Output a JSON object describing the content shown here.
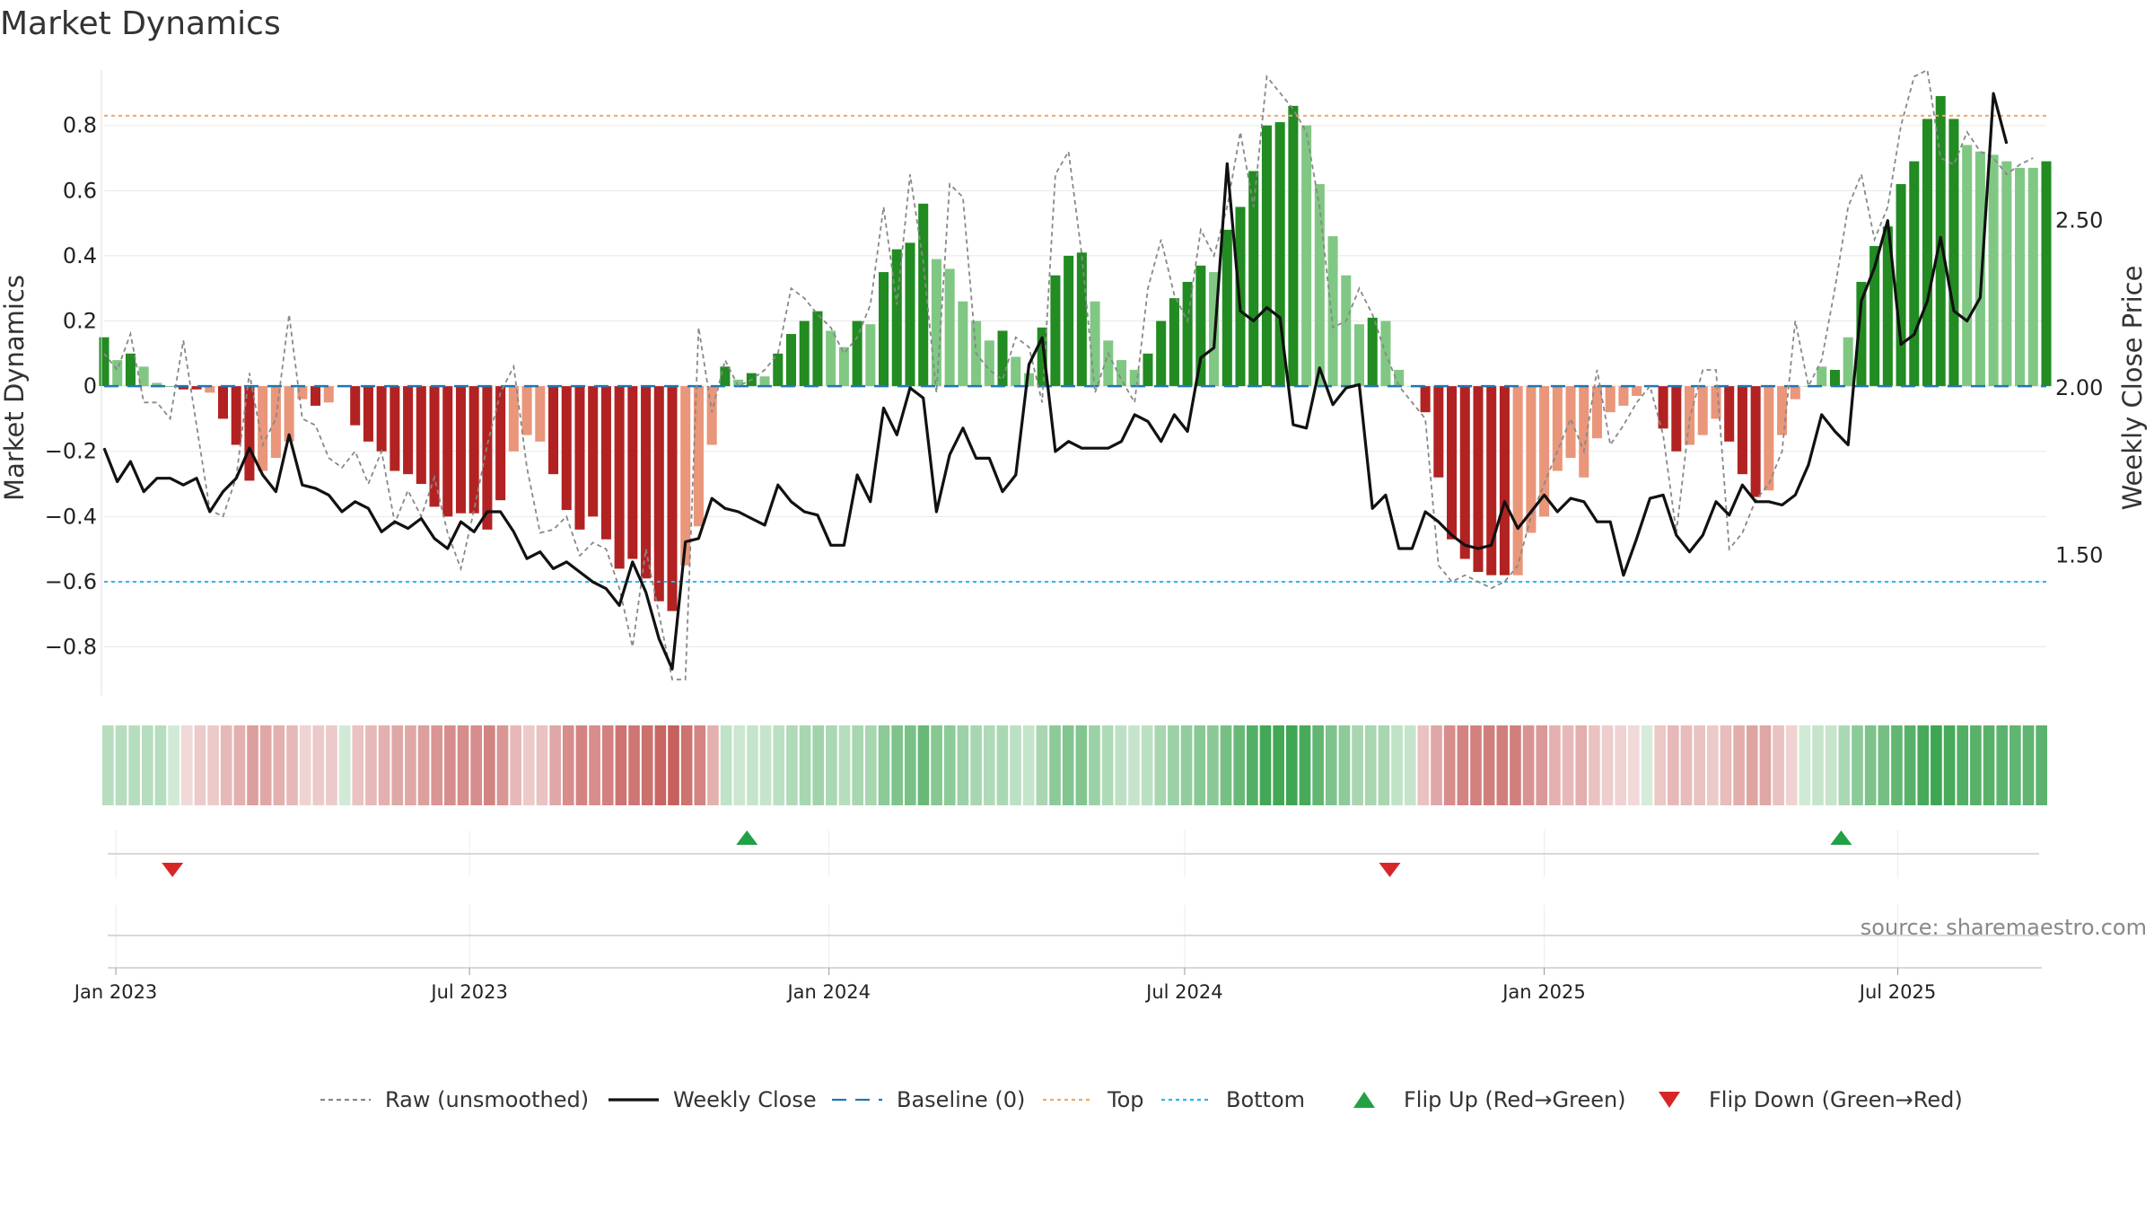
{
  "chart_data": {
    "type": "bar",
    "title": "Market Dynamics",
    "ylabel": "Market Dynamics",
    "y2label": "Weekly Close Price",
    "source": "source: sharemaestro.com",
    "ylim": [
      -0.95,
      0.97
    ],
    "y2lim": [
      1.08,
      2.95
    ],
    "yticks": [
      -0.8,
      -0.6,
      -0.4,
      -0.2,
      0,
      0.2,
      0.4,
      0.6,
      0.8
    ],
    "ytick_labels": [
      "−0.8",
      "−0.6",
      "−0.4",
      "−0.2",
      "0",
      "0.2",
      "0.4",
      "0.6",
      "0.8"
    ],
    "y2ticks": [
      1.5,
      2.0,
      2.5
    ],
    "y2tick_labels": [
      "1.50",
      "2.00",
      "2.50"
    ],
    "x_start": "2022-12-26",
    "x_end": "2025-09-15",
    "xticks": [
      "2023-01-01",
      "2023-07-01",
      "2024-01-01",
      "2024-07-01",
      "2025-01-01",
      "2025-07-01"
    ],
    "xtick_labels": [
      "Jan 2023",
      "Jul 2023",
      "Jan 2024",
      "Jul 2024",
      "Jan 2025",
      "Jul 2025"
    ],
    "grid": true,
    "top_threshold": 0.83,
    "bottom_threshold": -0.6,
    "baseline": 0,
    "smoothed": [
      0.15,
      0.08,
      0.1,
      0.06,
      0.01,
      0.0,
      -0.01,
      -0.01,
      -0.02,
      -0.1,
      -0.18,
      -0.29,
      -0.26,
      -0.22,
      -0.17,
      -0.04,
      -0.06,
      -0.05,
      0.0,
      -0.12,
      -0.17,
      -0.2,
      -0.26,
      -0.27,
      -0.3,
      -0.37,
      -0.4,
      -0.39,
      -0.39,
      -0.44,
      -0.35,
      -0.2,
      -0.15,
      -0.17,
      -0.27,
      -0.38,
      -0.44,
      -0.4,
      -0.47,
      -0.56,
      -0.53,
      -0.59,
      -0.66,
      -0.69,
      -0.55,
      -0.43,
      -0.18,
      0.06,
      0.02,
      0.04,
      0.03,
      0.1,
      0.16,
      0.2,
      0.23,
      0.17,
      0.12,
      0.2,
      0.19,
      0.35,
      0.42,
      0.44,
      0.56,
      0.39,
      0.36,
      0.26,
      0.2,
      0.14,
      0.17,
      0.09,
      0.04,
      0.18,
      0.34,
      0.4,
      0.41,
      0.26,
      0.14,
      0.08,
      0.05,
      0.1,
      0.2,
      0.27,
      0.32,
      0.37,
      0.35,
      0.48,
      0.55,
      0.66,
      0.8,
      0.81,
      0.86,
      0.8,
      0.62,
      0.46,
      0.34,
      0.19,
      0.21,
      0.2,
      0.05,
      0.0,
      -0.08,
      -0.28,
      -0.47,
      -0.53,
      -0.57,
      -0.58,
      -0.58,
      -0.58,
      -0.45,
      -0.4,
      -0.26,
      -0.22,
      -0.28,
      -0.16,
      -0.08,
      -0.06,
      -0.03,
      0.0,
      -0.13,
      -0.2,
      -0.18,
      -0.15,
      -0.1,
      -0.17,
      -0.27,
      -0.34,
      -0.32,
      -0.15,
      -0.04,
      0.0,
      0.06,
      0.05,
      0.15,
      0.32,
      0.43,
      0.49,
      0.62,
      0.69,
      0.82,
      0.89,
      0.82,
      0.74,
      0.72,
      0.71,
      0.69,
      0.67,
      0.67,
      0.69
    ],
    "color_flags": [
      1,
      0,
      1,
      0,
      0,
      1,
      1,
      1,
      0,
      1,
      1,
      1,
      0,
      0,
      0,
      0,
      1,
      0,
      1,
      1,
      1,
      1,
      1,
      1,
      1,
      1,
      1,
      1,
      1,
      1,
      1,
      0,
      0,
      0,
      1,
      1,
      1,
      1,
      1,
      1,
      1,
      1,
      1,
      1,
      0,
      0,
      0,
      1,
      0,
      1,
      0,
      1,
      1,
      1,
      1,
      0,
      0,
      1,
      0,
      1,
      1,
      1,
      1,
      0,
      0,
      0,
      0,
      0,
      1,
      0,
      0,
      1,
      1,
      1,
      1,
      0,
      0,
      0,
      0,
      1,
      1,
      1,
      1,
      1,
      0,
      1,
      1,
      1,
      1,
      1,
      1,
      0,
      0,
      0,
      0,
      0,
      1,
      0,
      0,
      0,
      1,
      1,
      1,
      1,
      1,
      1,
      1,
      0,
      0,
      0,
      0,
      0,
      0,
      0,
      0,
      0,
      0,
      0,
      1,
      1,
      0,
      0,
      0,
      1,
      1,
      1,
      0,
      0,
      0,
      0,
      0,
      1,
      0,
      1,
      1,
      1,
      1,
      1,
      1,
      1,
      1,
      0,
      0,
      0,
      0,
      0,
      0,
      1,
      1
    ],
    "raw_visible": [
      0.1,
      0.05,
      0.16,
      -0.05,
      -0.05,
      -0.1,
      0.14,
      -0.12,
      -0.38,
      -0.4,
      -0.28,
      0.04,
      -0.18,
      -0.1,
      0.22,
      -0.1,
      -0.12,
      -0.22,
      -0.25,
      -0.2,
      -0.3,
      -0.2,
      -0.42,
      -0.32,
      -0.4,
      -0.28,
      -0.45,
      -0.56,
      -0.38,
      -0.18,
      -0.02,
      0.06,
      -0.25,
      -0.45,
      -0.44,
      -0.4,
      -0.52,
      -0.48,
      -0.5,
      -0.62,
      -0.8,
      -0.5,
      -0.7,
      -0.9,
      -0.9,
      0.18,
      -0.08,
      0.08,
      0.0,
      0.02,
      0.05,
      0.1,
      0.3,
      0.27,
      0.22,
      0.18,
      0.1,
      0.15,
      0.25,
      0.55,
      0.25,
      0.65,
      0.38,
      -0.02,
      0.62,
      0.58,
      0.1,
      0.05,
      0.02,
      0.15,
      0.12,
      -0.05,
      0.65,
      0.72,
      0.4,
      -0.02,
      0.1,
      0.02,
      -0.05,
      0.3,
      0.45,
      0.28,
      0.2,
      0.48,
      0.4,
      0.55,
      0.78,
      0.55,
      0.95,
      0.9,
      0.85,
      0.78,
      0.55,
      0.18,
      0.2,
      0.3,
      0.22,
      0.1,
      0.0,
      -0.05,
      -0.1,
      -0.55,
      -0.6,
      -0.58,
      -0.6,
      -0.62,
      -0.6,
      -0.55,
      -0.4,
      -0.3,
      -0.2,
      -0.1,
      -0.2,
      0.05,
      -0.18,
      -0.12,
      -0.05,
      0.0,
      -0.15,
      -0.45,
      -0.1,
      0.05,
      0.05,
      -0.5,
      -0.45,
      -0.35,
      -0.3,
      -0.2,
      0.2,
      0.0,
      0.08,
      0.3,
      0.55,
      0.65,
      0.45,
      0.55,
      0.8,
      0.95,
      0.97,
      0.7,
      0.68,
      0.78,
      0.72,
      0.7,
      0.65,
      0.68,
      0.7
    ],
    "close": [
      1.82,
      1.72,
      1.78,
      1.69,
      1.73,
      1.73,
      1.71,
      1.73,
      1.63,
      1.69,
      1.73,
      1.82,
      1.74,
      1.69,
      1.86,
      1.71,
      1.7,
      1.68,
      1.63,
      1.66,
      1.64,
      1.57,
      1.6,
      1.58,
      1.61,
      1.55,
      1.52,
      1.6,
      1.57,
      1.63,
      1.63,
      1.57,
      1.49,
      1.51,
      1.46,
      1.48,
      1.45,
      1.42,
      1.4,
      1.35,
      1.48,
      1.39,
      1.25,
      1.16,
      1.54,
      1.55,
      1.67,
      1.64,
      1.63,
      1.61,
      1.59,
      1.71,
      1.66,
      1.63,
      1.62,
      1.53,
      1.53,
      1.74,
      1.66,
      1.94,
      1.86,
      2.0,
      1.97,
      1.63,
      1.8,
      1.88,
      1.79,
      1.79,
      1.69,
      1.74,
      2.07,
      2.15,
      1.81,
      1.84,
      1.82,
      1.82,
      1.82,
      1.84,
      1.92,
      1.9,
      1.84,
      1.92,
      1.87,
      2.09,
      2.12,
      2.67,
      2.23,
      2.2,
      2.24,
      2.21,
      1.89,
      1.88,
      2.06,
      1.95,
      2.0,
      2.01,
      1.64,
      1.68,
      1.52,
      1.52,
      1.63,
      1.6,
      1.56,
      1.53,
      1.52,
      1.53,
      1.66,
      1.58,
      1.63,
      1.68,
      1.63,
      1.67,
      1.66,
      1.6,
      1.6,
      1.44,
      1.55,
      1.67,
      1.68,
      1.56,
      1.51,
      1.56,
      1.66,
      1.62,
      1.71,
      1.66,
      1.66,
      1.65,
      1.68,
      1.77,
      1.92,
      1.87,
      1.83,
      2.26,
      2.36,
      2.5,
      2.13,
      2.16,
      2.26,
      2.45,
      2.23,
      2.2,
      2.27,
      2.88,
      2.73
    ],
    "strip_alpha": [
      0.35,
      0.35,
      0.35,
      0.35,
      0.35,
      0.22,
      0.22,
      0.3,
      0.3,
      0.4,
      0.45,
      0.55,
      0.5,
      0.45,
      0.4,
      0.25,
      0.3,
      0.3,
      0.22,
      0.35,
      0.4,
      0.45,
      0.5,
      0.5,
      0.55,
      0.6,
      0.65,
      0.65,
      0.65,
      0.7,
      0.6,
      0.4,
      0.3,
      0.35,
      0.5,
      0.65,
      0.7,
      0.65,
      0.72,
      0.8,
      0.78,
      0.82,
      0.88,
      0.9,
      0.8,
      0.7,
      0.45,
      0.3,
      0.25,
      0.28,
      0.28,
      0.32,
      0.38,
      0.42,
      0.45,
      0.4,
      0.35,
      0.42,
      0.42,
      0.55,
      0.62,
      0.64,
      0.72,
      0.58,
      0.55,
      0.48,
      0.42,
      0.38,
      0.4,
      0.32,
      0.28,
      0.42,
      0.55,
      0.6,
      0.6,
      0.48,
      0.38,
      0.32,
      0.28,
      0.32,
      0.42,
      0.48,
      0.52,
      0.57,
      0.56,
      0.65,
      0.72,
      0.82,
      0.9,
      0.9,
      0.92,
      0.88,
      0.75,
      0.62,
      0.55,
      0.42,
      0.42,
      0.42,
      0.3,
      0.28,
      0.35,
      0.5,
      0.65,
      0.7,
      0.72,
      0.73,
      0.73,
      0.73,
      0.62,
      0.58,
      0.45,
      0.4,
      0.46,
      0.35,
      0.28,
      0.25,
      0.22,
      0.2,
      0.32,
      0.4,
      0.38,
      0.35,
      0.3,
      0.38,
      0.46,
      0.52,
      0.5,
      0.35,
      0.25,
      0.22,
      0.28,
      0.28,
      0.4,
      0.55,
      0.62,
      0.66,
      0.75,
      0.8,
      0.88,
      0.92,
      0.88,
      0.82,
      0.8,
      0.8,
      0.78,
      0.76,
      0.76,
      0.78
    ],
    "flips_up": [
      "2023-11-20",
      "2025-06-02"
    ],
    "flips_down": [
      "2023-01-30",
      "2024-10-14"
    ],
    "legend": [
      {
        "label": "Raw (unsmoothed)",
        "kind": "line-dash",
        "color": "#888888"
      },
      {
        "label": "Weekly Close",
        "kind": "line",
        "color": "#111111"
      },
      {
        "label": "Baseline (0)",
        "kind": "line-longdash",
        "color": "#1f77b4"
      },
      {
        "label": "Top",
        "kind": "line-dot",
        "color": "#f0a868"
      },
      {
        "label": "Bottom",
        "kind": "line-dot",
        "color": "#29b6f6"
      },
      {
        "label": "Flip Up (Red→Green)",
        "kind": "tri-up",
        "color": "#22a045"
      },
      {
        "label": "Flip Down (Green→Red)",
        "kind": "tri-down",
        "color": "#d62728"
      }
    ],
    "legend_placement": "bottom-center",
    "colors": {
      "green_strong": "#228b22",
      "green_light": "#81c784",
      "red_strong": "#b22222",
      "red_light": "#e9967a",
      "strip_green": "#2e9e44",
      "strip_red": "#c0504d",
      "top_line": "#f0a868",
      "bottom_line": "#29b6f6",
      "baseline": "#1f77b4",
      "close_line": "#111111",
      "raw_line": "#888888"
    }
  }
}
